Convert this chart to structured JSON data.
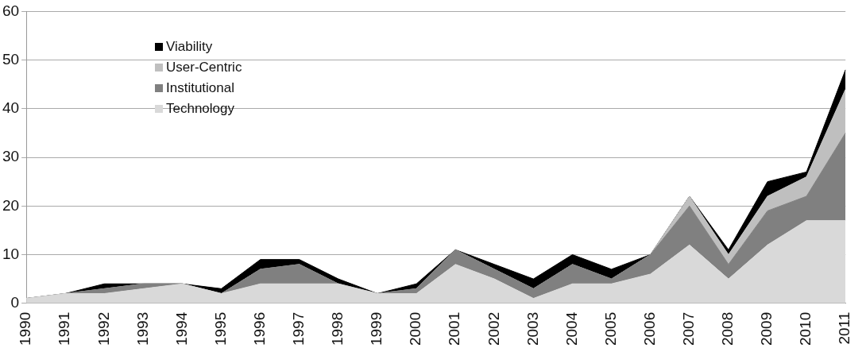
{
  "chart_data": {
    "type": "area",
    "stacked": true,
    "categories": [
      "1990",
      "1991",
      "1992",
      "1993",
      "1994",
      "1995",
      "1996",
      "1997",
      "1998",
      "1999",
      "2000",
      "2001",
      "2002",
      "2003",
      "2004",
      "2005",
      "2006",
      "2007",
      "2008",
      "2009",
      "2010",
      "2011"
    ],
    "series": [
      {
        "name": "Technology",
        "color": "#d9d9d9",
        "values": [
          1,
          2,
          2,
          3,
          4,
          2,
          4,
          4,
          4,
          2,
          2,
          8,
          5,
          1,
          4,
          4,
          6,
          12,
          5,
          12,
          17,
          17
        ]
      },
      {
        "name": "Institutional",
        "color": "#808080",
        "values": [
          0,
          0,
          1,
          1,
          0,
          0,
          3,
          4,
          0,
          0,
          1,
          3,
          2,
          2,
          4,
          1,
          4,
          8,
          3,
          7,
          5,
          18
        ]
      },
      {
        "name": "User-Centric",
        "color": "#bfbfbf",
        "values": [
          0,
          0,
          0,
          0,
          0,
          0,
          0,
          0,
          0,
          0,
          0,
          0,
          0,
          0,
          0,
          0,
          0,
          2,
          2,
          3,
          4,
          9
        ]
      },
      {
        "name": "Viability",
        "color": "#000000",
        "values": [
          0,
          0,
          1,
          0,
          0,
          1,
          2,
          1,
          1,
          0,
          1,
          0,
          1,
          2,
          2,
          2,
          0,
          0,
          1,
          3,
          1,
          4
        ]
      }
    ],
    "ylim": [
      0,
      60
    ],
    "yticks": [
      0,
      10,
      20,
      30,
      40,
      50,
      60
    ],
    "grid": "y",
    "legend": "top left"
  }
}
